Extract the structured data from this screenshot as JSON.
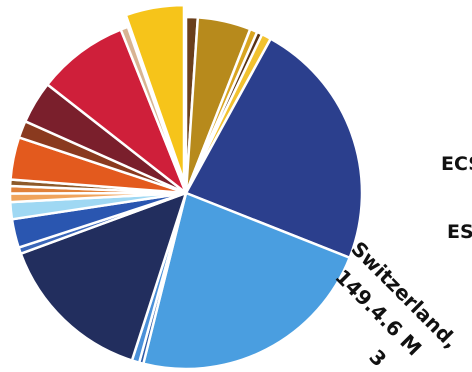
{
  "chart_data": {
    "type": "pie",
    "slices": [
      {
        "value": 1.1,
        "color": "#6a3f1c"
      },
      {
        "value": 5.0,
        "color": "#b78a1c"
      },
      {
        "value": 0.7,
        "color": "#d9a521"
      },
      {
        "value": 0.5,
        "color": "#5a3414"
      },
      {
        "value": 0.9,
        "color": "#f2c230"
      },
      {
        "value": 23.6,
        "color": "#2b3f8d"
      },
      {
        "value": 23.5,
        "color": "#4a9ee0"
      },
      {
        "value": 0.4,
        "color": "#2d5aa8"
      },
      {
        "value": 0.7,
        "color": "#4a90d9"
      },
      {
        "value": 14.8,
        "color": "#222e5e"
      },
      {
        "value": 0.6,
        "color": "#3a66b8"
      },
      {
        "value": 2.7,
        "color": "#2a56b0"
      },
      {
        "value": 1.6,
        "color": "#9fd8f3"
      },
      {
        "value": 0.8,
        "color": "#f0a45c"
      },
      {
        "value": 0.7,
        "color": "#e0813a"
      },
      {
        "value": 0.6,
        "color": "#8d5a2a"
      },
      {
        "value": 4.0,
        "color": "#e35a1e"
      },
      {
        "value": 1.6,
        "color": "#8a3a1f"
      },
      {
        "value": 4.0,
        "color": "#7a1f2c"
      },
      {
        "value": 8.6,
        "color": "#cf1f3a"
      },
      {
        "value": 0.7,
        "color": "#d8b493"
      },
      {
        "value": 5.5,
        "color": "#f6c41a",
        "exploded": true
      }
    ],
    "labels": {
      "country": "Switzerland,",
      "value": "149.4.6 M",
      "extra": "3",
      "side_top": "ECS",
      "side_bottom": "ES"
    }
  }
}
